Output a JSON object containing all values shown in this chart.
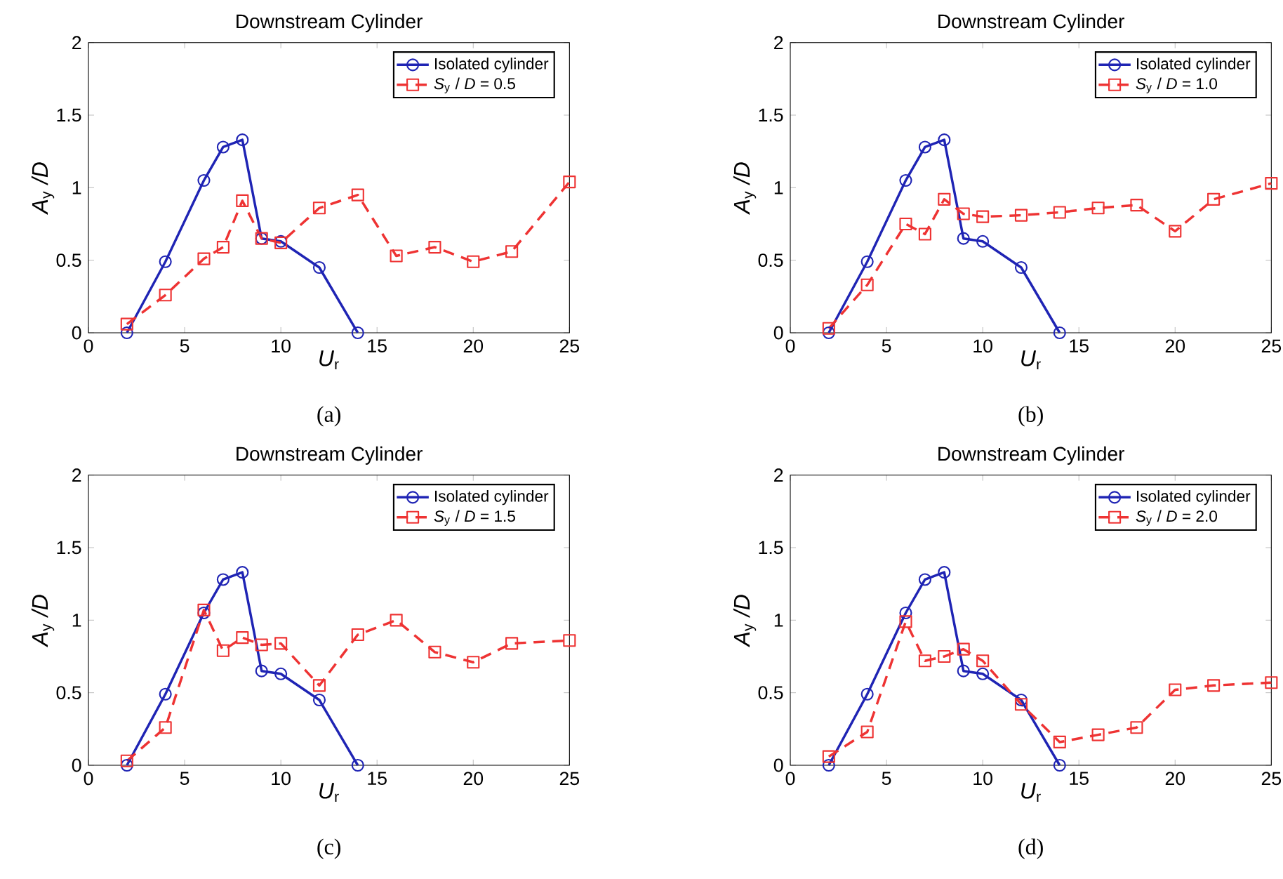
{
  "chart_data": [
    {
      "type": "line",
      "title": "Downstream Cylinder",
      "xlabel": "*U*$_{r}$",
      "ylabel": "*A*$_{y}$ */D*",
      "annotations": [
        "(a)"
      ],
      "xlim": [
        0,
        25
      ],
      "ylim": [
        0,
        2
      ],
      "xticks": [
        0,
        5,
        10,
        15,
        20,
        25
      ],
      "yticks": [
        0,
        0.5,
        1,
        1.5,
        2
      ],
      "legend": "top right",
      "series": [
        {
          "name": "Isolated cylinder",
          "color": "#1f24b4",
          "marker": "circle",
          "line_style": "solid",
          "x": [
            2,
            4,
            6,
            7,
            8,
            9,
            10,
            12,
            14
          ],
          "values": [
            0,
            0.49,
            1.05,
            1.28,
            1.33,
            0.65,
            0.63,
            0.45,
            0
          ]
        },
        {
          "name": "*S*$_{y}$ / *D* = 0.5",
          "color": "#ee3333",
          "marker": "square",
          "line_style": "dashed",
          "x": [
            2,
            4,
            6,
            7,
            8,
            9,
            10,
            12,
            14,
            16,
            18,
            20,
            22,
            25
          ],
          "values": [
            0.06,
            0.26,
            0.51,
            0.59,
            0.91,
            0.65,
            0.62,
            0.86,
            0.95,
            0.53,
            0.59,
            0.49,
            0.56,
            1.04
          ]
        }
      ]
    },
    {
      "type": "line",
      "title": "Downstream Cylinder",
      "xlabel": "*U*$_{r}$",
      "ylabel": "*A*$_{y}$ */D*",
      "annotations": [
        "(b)"
      ],
      "xlim": [
        0,
        25
      ],
      "ylim": [
        0,
        2
      ],
      "xticks": [
        0,
        5,
        10,
        15,
        20,
        25
      ],
      "yticks": [
        0,
        0.5,
        1,
        1.5,
        2
      ],
      "legend": "top right",
      "series": [
        {
          "name": "Isolated cylinder",
          "color": "#1f24b4",
          "marker": "circle",
          "line_style": "solid",
          "x": [
            2,
            4,
            6,
            7,
            8,
            9,
            10,
            12,
            14
          ],
          "values": [
            0,
            0.49,
            1.05,
            1.28,
            1.33,
            0.65,
            0.63,
            0.45,
            0
          ]
        },
        {
          "name": "*S*$_{y}$ / *D* = 1.0",
          "color": "#ee3333",
          "marker": "square",
          "line_style": "dashed",
          "x": [
            2,
            4,
            6,
            7,
            8,
            9,
            10,
            12,
            14,
            16,
            18,
            20,
            22,
            25
          ],
          "values": [
            0.03,
            0.33,
            0.75,
            0.68,
            0.92,
            0.82,
            0.8,
            0.81,
            0.83,
            0.86,
            0.88,
            0.7,
            0.92,
            1.03
          ]
        }
      ]
    },
    {
      "type": "line",
      "title": "Downstream Cylinder",
      "xlabel": "*U*$_{r}$",
      "ylabel": "*A*$_{y}$ */D*",
      "annotations": [
        "(c)"
      ],
      "xlim": [
        0,
        25
      ],
      "ylim": [
        0,
        2
      ],
      "xticks": [
        0,
        5,
        10,
        15,
        20,
        25
      ],
      "yticks": [
        0,
        0.5,
        1,
        1.5,
        2
      ],
      "legend": "top right",
      "series": [
        {
          "name": "Isolated cylinder",
          "color": "#1f24b4",
          "marker": "circle",
          "line_style": "solid",
          "x": [
            2,
            4,
            6,
            7,
            8,
            9,
            10,
            12,
            14
          ],
          "values": [
            0,
            0.49,
            1.05,
            1.28,
            1.33,
            0.65,
            0.63,
            0.45,
            0
          ]
        },
        {
          "name": "*S*$_{y}$ / *D* = 1.5",
          "color": "#ee3333",
          "marker": "square",
          "line_style": "dashed",
          "x": [
            2,
            4,
            6,
            7,
            8,
            9,
            10,
            12,
            14,
            16,
            18,
            20,
            22,
            25
          ],
          "values": [
            0.03,
            0.26,
            1.07,
            0.79,
            0.88,
            0.83,
            0.84,
            0.55,
            0.9,
            1.0,
            0.78,
            0.71,
            0.84,
            0.86
          ]
        }
      ]
    },
    {
      "type": "line",
      "title": "Downstream Cylinder",
      "xlabel": "*U*$_{r}$",
      "ylabel": "*A*$_{y}$ */D*",
      "annotations": [
        "(d)"
      ],
      "xlim": [
        0,
        25
      ],
      "ylim": [
        0,
        2
      ],
      "xticks": [
        0,
        5,
        10,
        15,
        20,
        25
      ],
      "yticks": [
        0,
        0.5,
        1,
        1.5,
        2
      ],
      "legend": "top right",
      "series": [
        {
          "name": "Isolated cylinder",
          "color": "#1f24b4",
          "marker": "circle",
          "line_style": "solid",
          "x": [
            2,
            4,
            6,
            7,
            8,
            9,
            10,
            12,
            14
          ],
          "values": [
            0,
            0.49,
            1.05,
            1.28,
            1.33,
            0.65,
            0.63,
            0.45,
            0
          ]
        },
        {
          "name": "*S*$_{y}$ / *D* = 2.0",
          "color": "#ee3333",
          "marker": "square",
          "line_style": "dashed",
          "x": [
            2,
            4,
            6,
            7,
            8,
            9,
            10,
            12,
            14,
            16,
            18,
            20,
            22,
            25
          ],
          "values": [
            0.06,
            0.23,
            0.99,
            0.72,
            0.75,
            0.8,
            0.72,
            0.42,
            0.16,
            0.21,
            0.26,
            0.52,
            0.55,
            0.57
          ]
        }
      ]
    }
  ]
}
